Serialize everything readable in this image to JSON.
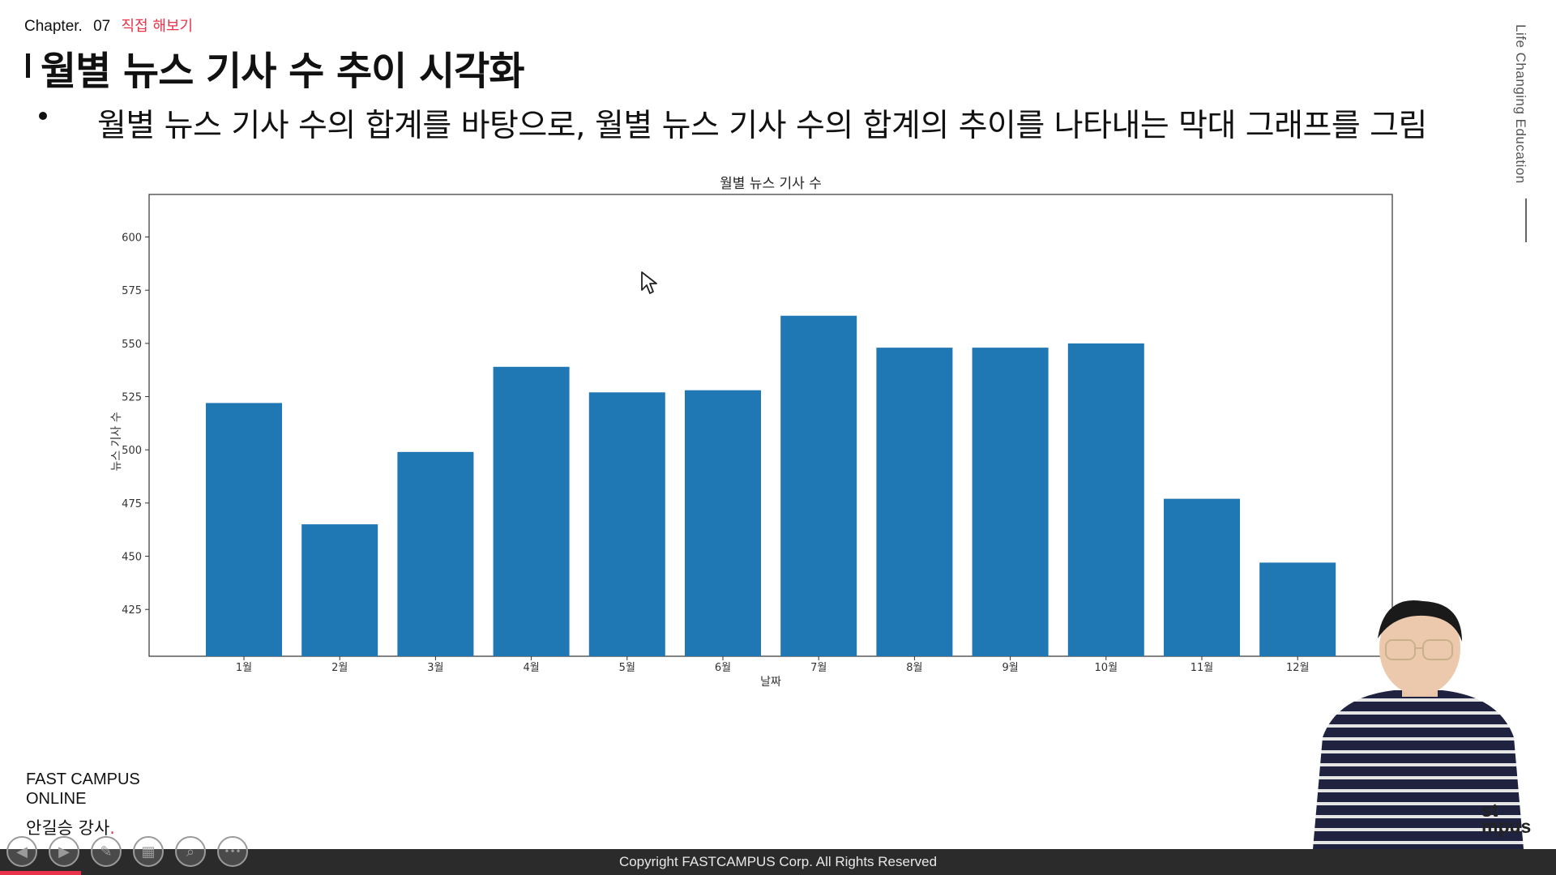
{
  "header": {
    "chapter_label": "Chapter.",
    "chapter_number": "07",
    "chapter_subtitle": "직접 해보기",
    "title": "월별 뉴스 기사 수 추이 시각화",
    "bullet_text": "월별 뉴스 기사 수의 합계를 바탕으로, 월별 뉴스 기사 수의 합계의 추이를 나타내는 막대 그래프를 그림"
  },
  "side_text": "Life Changing Education",
  "chart_data": {
    "type": "bar",
    "title": "월별 뉴스 기사 수",
    "xlabel": "날짜",
    "ylabel": "뉴스 기사 수",
    "categories": [
      "1월",
      "2월",
      "3월",
      "4월",
      "5월",
      "6월",
      "7월",
      "8월",
      "9월",
      "10월",
      "11월",
      "12월"
    ],
    "values": [
      522,
      465,
      499,
      539,
      527,
      528,
      563,
      548,
      548,
      550,
      477,
      447
    ],
    "ylim": [
      403,
      620
    ],
    "yticks": [
      425,
      450,
      475,
      500,
      525,
      550,
      575,
      600
    ],
    "bar_color": "#1f77b4",
    "grid": false
  },
  "branding": {
    "line1": "FAST CAMPUS",
    "line2": "ONLINE",
    "lecturer": "안길승 강사",
    "lecturer_dot": ".",
    "logo_partial_1": "st",
    "logo_partial_2": "mpus"
  },
  "footer": {
    "copyright": "Copyright FASTCAMPUS Corp. All Rights Reserved"
  },
  "controls": [
    {
      "icon": "previous-arrow-icon",
      "glyph": "◀"
    },
    {
      "icon": "next-arrow-icon",
      "glyph": "▶"
    },
    {
      "icon": "pen-icon",
      "glyph": "✎"
    },
    {
      "icon": "slides-icon",
      "glyph": "▦"
    },
    {
      "icon": "zoom-icon",
      "glyph": "⌕"
    },
    {
      "icon": "more-icon",
      "glyph": "•••"
    }
  ],
  "colors": {
    "accent": "#e8334a",
    "footer_bg": "#2b2b2b",
    "bar": "#1f77b4"
  }
}
